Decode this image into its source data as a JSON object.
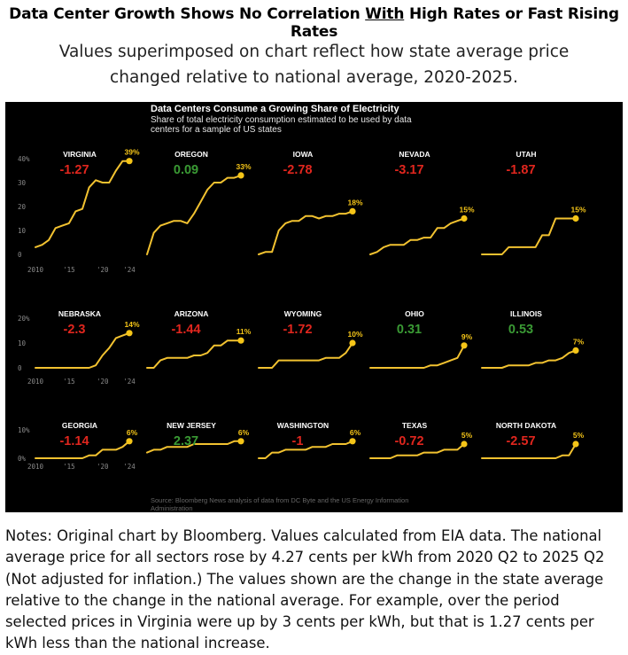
{
  "header": {
    "title_part1": "Data Center Growth Shows No Correlation ",
    "title_emph": "With",
    "title_part2": " High Rates or Fast Rising Rates",
    "subtitle": "Values superimposed on chart reflect how state average price changed relative to national average, 2020-2025."
  },
  "notes": "Notes: Original chart by Bloomberg. Values calculated from EIA data. The national average price for all sectors rose by 4.27 cents per kWh from 2020 Q2 to 2025 Q2 (Not adjusted for inflation.) The values shown are the change in the state average relative to the change in the national average. For example, over the period selected prices in Virginia were up by 3 cents per kWh, but that is 1.27 cents per kWh less than the national increase.",
  "colors": {
    "panel_bg": "#000000",
    "line": "#f2c230",
    "endpoint": "#f5c518",
    "negative": "#e0261e",
    "positive": "#3a9a34",
    "axis_text": "#8a8a8a",
    "state_label": "#ffffff"
  },
  "chart_data": {
    "type": "line",
    "title": "Data Centers Consume a Growing Share of Electricity",
    "subtitle_line1": "Share of total electricity consumption estimated to be used by data",
    "subtitle_line2": "centers for a sample of US states",
    "source_line1": "Source: Bloomberg News analysis of data from DC Byte and the US Energy Information",
    "source_line2": "Administration",
    "x": [
      2010,
      2011,
      2012,
      2013,
      2014,
      2015,
      2016,
      2017,
      2018,
      2019,
      2020,
      2021,
      2022,
      2023,
      2024
    ],
    "xtick_labels": [
      "2010",
      "'15",
      "'20",
      "'24"
    ],
    "xticks": [
      2010,
      2015,
      2020,
      2024
    ],
    "rows": [
      {
        "ylim": [
          0,
          40
        ],
        "ytick_labels": [
          "0",
          "10",
          "20",
          "30",
          "40%"
        ],
        "yticks": [
          0,
          10,
          20,
          30,
          40
        ]
      },
      {
        "ylim": [
          0,
          20
        ],
        "ytick_labels": [
          "0",
          "10",
          "20%"
        ],
        "yticks": [
          0,
          10,
          20
        ]
      },
      {
        "ylim": [
          0,
          10
        ],
        "ytick_labels": [
          "0%",
          "10%"
        ],
        "yticks": [
          0,
          10
        ]
      }
    ],
    "series": [
      {
        "name": "VIRGINIA",
        "row": 0,
        "col": 0,
        "price_delta": "-1.27",
        "sign": "neg",
        "end_label": "39%",
        "values": [
          3,
          4,
          6,
          11,
          12,
          13,
          18,
          19,
          28,
          31,
          30,
          30,
          35,
          39,
          39
        ]
      },
      {
        "name": "OREGON",
        "row": 0,
        "col": 1,
        "price_delta": "0.09",
        "sign": "pos",
        "end_label": "33%",
        "values": [
          0,
          9,
          12,
          13,
          14,
          14,
          13,
          17,
          22,
          27,
          30,
          30,
          32,
          32,
          33
        ]
      },
      {
        "name": "IOWA",
        "row": 0,
        "col": 2,
        "price_delta": "-2.78",
        "sign": "neg",
        "end_label": "18%",
        "values": [
          0,
          1,
          1,
          10,
          13,
          14,
          14,
          16,
          16,
          15,
          16,
          16,
          17,
          17,
          18
        ]
      },
      {
        "name": "NEVADA",
        "row": 0,
        "col": 3,
        "price_delta": "-3.17",
        "sign": "neg",
        "end_label": "15%",
        "values": [
          0,
          1,
          3,
          4,
          4,
          4,
          6,
          6,
          7,
          7,
          11,
          11,
          13,
          14,
          15
        ]
      },
      {
        "name": "UTAH",
        "row": 0,
        "col": 4,
        "price_delta": "-1.87",
        "sign": "neg",
        "end_label": "15%",
        "values": [
          0,
          0,
          0,
          0,
          3,
          3,
          3,
          3,
          3,
          8,
          8,
          15,
          15,
          15,
          15
        ]
      },
      {
        "name": "NEBRASKA",
        "row": 1,
        "col": 0,
        "price_delta": "-2.3",
        "sign": "neg",
        "end_label": "14%",
        "values": [
          0,
          0,
          0,
          0,
          0,
          0,
          0,
          0,
          0,
          1,
          5,
          8,
          12,
          13,
          14
        ]
      },
      {
        "name": "ARIZONA",
        "row": 1,
        "col": 1,
        "price_delta": "-1.44",
        "sign": "neg",
        "end_label": "11%",
        "values": [
          0,
          0,
          3,
          4,
          4,
          4,
          4,
          5,
          5,
          6,
          9,
          9,
          11,
          11,
          11
        ]
      },
      {
        "name": "WYOMING",
        "row": 1,
        "col": 2,
        "price_delta": "-1.72",
        "sign": "neg",
        "end_label": "10%",
        "values": [
          0,
          0,
          0,
          3,
          3,
          3,
          3,
          3,
          3,
          3,
          4,
          4,
          4,
          6,
          10
        ]
      },
      {
        "name": "OHIO",
        "row": 1,
        "col": 3,
        "price_delta": "0.31",
        "sign": "pos",
        "end_label": "9%",
        "values": [
          0,
          0,
          0,
          0,
          0,
          0,
          0,
          0,
          0,
          1,
          1,
          2,
          3,
          4,
          9
        ]
      },
      {
        "name": "ILLINOIS",
        "row": 1,
        "col": 4,
        "price_delta": "0.53",
        "sign": "pos",
        "end_label": "7%",
        "values": [
          0,
          0,
          0,
          0,
          1,
          1,
          1,
          1,
          2,
          2,
          3,
          3,
          4,
          6,
          7
        ]
      },
      {
        "name": "GEORGIA",
        "row": 2,
        "col": 0,
        "price_delta": "-1.14",
        "sign": "neg",
        "end_label": "6%",
        "values": [
          0,
          0,
          0,
          0,
          0,
          0,
          0,
          0,
          1,
          1,
          3,
          3,
          3,
          4,
          6
        ]
      },
      {
        "name": "NEW JERSEY",
        "row": 2,
        "col": 1,
        "price_delta": "2.37",
        "sign": "pos",
        "end_label": "6%",
        "values": [
          2,
          3,
          3,
          4,
          4,
          4,
          4,
          5,
          5,
          5,
          5,
          5,
          5,
          6,
          6
        ]
      },
      {
        "name": "WASHINGTON",
        "row": 2,
        "col": 2,
        "price_delta": "-1",
        "sign": "neg",
        "end_label": "6%",
        "values": [
          0,
          0,
          2,
          2,
          3,
          3,
          3,
          3,
          4,
          4,
          4,
          5,
          5,
          5,
          6
        ]
      },
      {
        "name": "TEXAS",
        "row": 2,
        "col": 3,
        "price_delta": "-0.72",
        "sign": "neg",
        "end_label": "5%",
        "values": [
          0,
          0,
          0,
          0,
          1,
          1,
          1,
          1,
          2,
          2,
          2,
          3,
          3,
          3,
          5
        ]
      },
      {
        "name": "NORTH DAKOTA",
        "row": 2,
        "col": 4,
        "price_delta": "-2.57",
        "sign": "neg",
        "end_label": "5%",
        "values": [
          0,
          0,
          0,
          0,
          0,
          0,
          0,
          0,
          0,
          0,
          0,
          0,
          1,
          1,
          5
        ]
      }
    ]
  }
}
